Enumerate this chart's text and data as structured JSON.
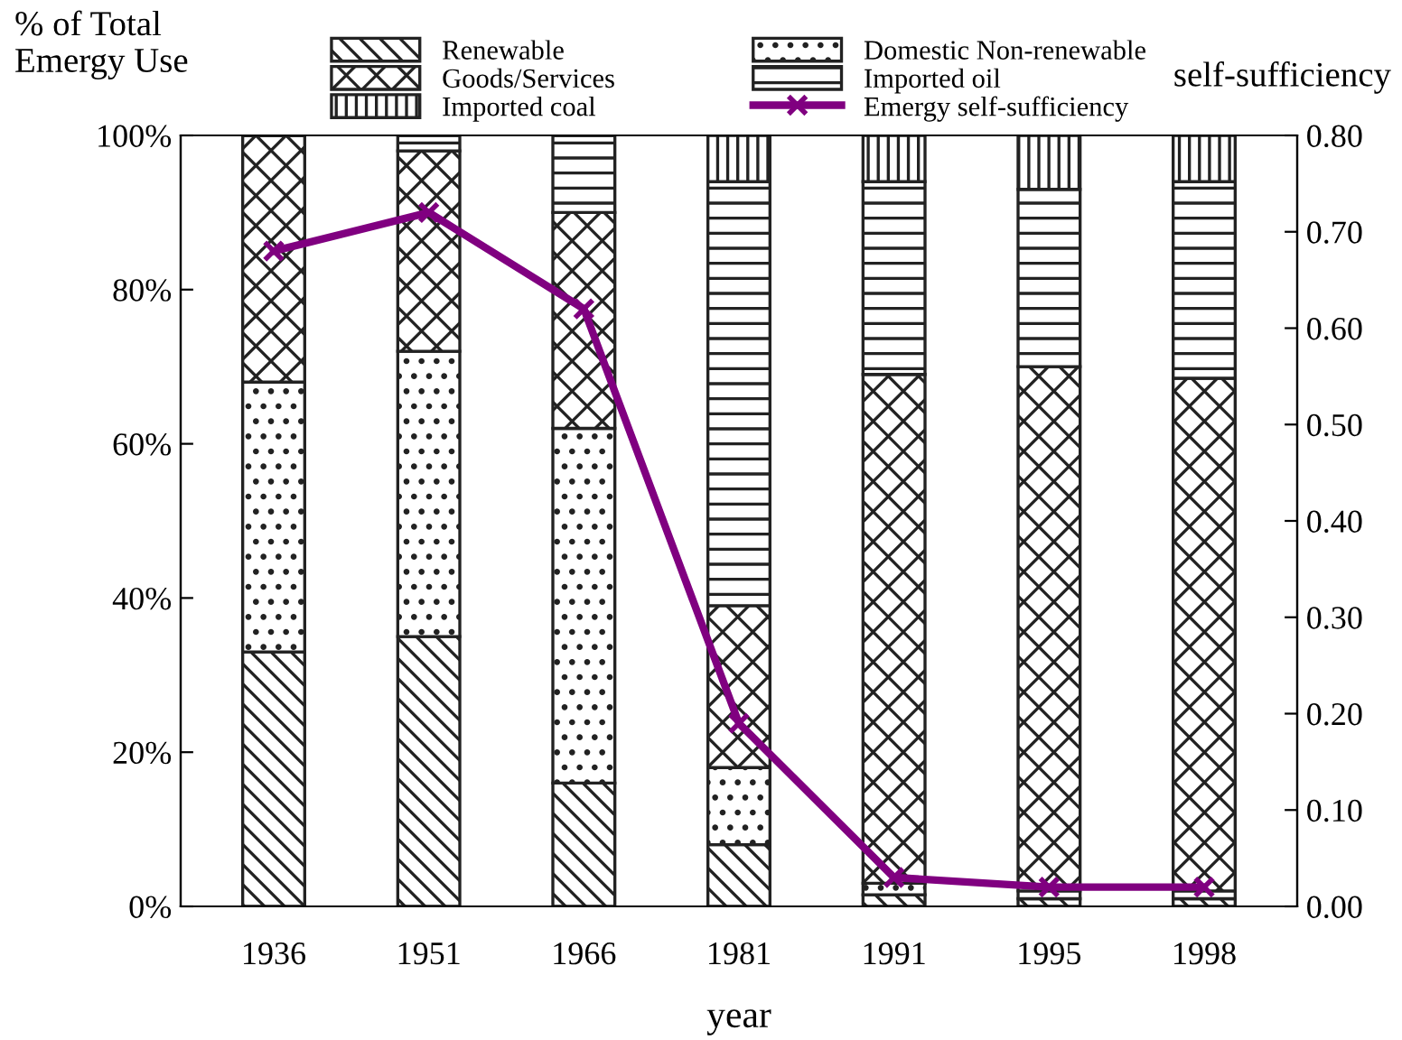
{
  "chart_data": {
    "type": "bar",
    "stacked": true,
    "xlabel": "year",
    "ylabel": "% of Total\nEmergy Use",
    "y2label": "self-sufficiency",
    "categories": [
      "1936",
      "1951",
      "1966",
      "1981",
      "1991",
      "1995",
      "1998"
    ],
    "series": [
      {
        "name": "Renewable",
        "color": "#222222",
        "values": [
          33,
          35,
          16,
          8,
          1.5,
          1,
          1
        ]
      },
      {
        "name": "Domestic Non-renewable",
        "color": "#222222",
        "values": [
          35,
          37,
          46,
          10,
          1.5,
          1,
          1
        ]
      },
      {
        "name": "Goods/Services",
        "color": "#222222",
        "values": [
          32,
          26,
          28,
          21,
          66,
          68,
          66.5
        ]
      },
      {
        "name": "Imported oil",
        "color": "#222222",
        "values": [
          0,
          2,
          10,
          55,
          25,
          23,
          25.5
        ]
      },
      {
        "name": "Imported coal",
        "color": "#222222",
        "values": [
          0,
          0,
          0,
          6,
          6,
          7,
          6
        ]
      },
      {
        "name": "Emergy self-sufficiency",
        "type": "line",
        "axis": "y2",
        "color": "#800080",
        "marker": "cross",
        "values": [
          0.68,
          0.72,
          0.62,
          0.19,
          0.03,
          0.02,
          0.02
        ]
      }
    ],
    "ylim": [
      0,
      100
    ],
    "yticks": [
      {
        "value": 0,
        "label": "0%"
      },
      {
        "value": 20,
        "label": "20%"
      },
      {
        "value": 40,
        "label": "40%"
      },
      {
        "value": 60,
        "label": "60%"
      },
      {
        "value": 80,
        "label": "80%"
      },
      {
        "value": 100,
        "label": "100%"
      }
    ],
    "y2lim": [
      0,
      0.8
    ],
    "y2ticks": [
      {
        "value": 0,
        "label": "0.00"
      },
      {
        "value": 0.1,
        "label": "0.10"
      },
      {
        "value": 0.2,
        "label": "0.20"
      },
      {
        "value": 0.3,
        "label": "0.30"
      },
      {
        "value": 0.4,
        "label": "0.40"
      },
      {
        "value": 0.5,
        "label": "0.50"
      },
      {
        "value": 0.6,
        "label": "0.60"
      },
      {
        "value": 0.7,
        "label": "0.70"
      },
      {
        "value": 0.8,
        "label": "0.80"
      }
    ],
    "grid": false,
    "legend": "top"
  }
}
